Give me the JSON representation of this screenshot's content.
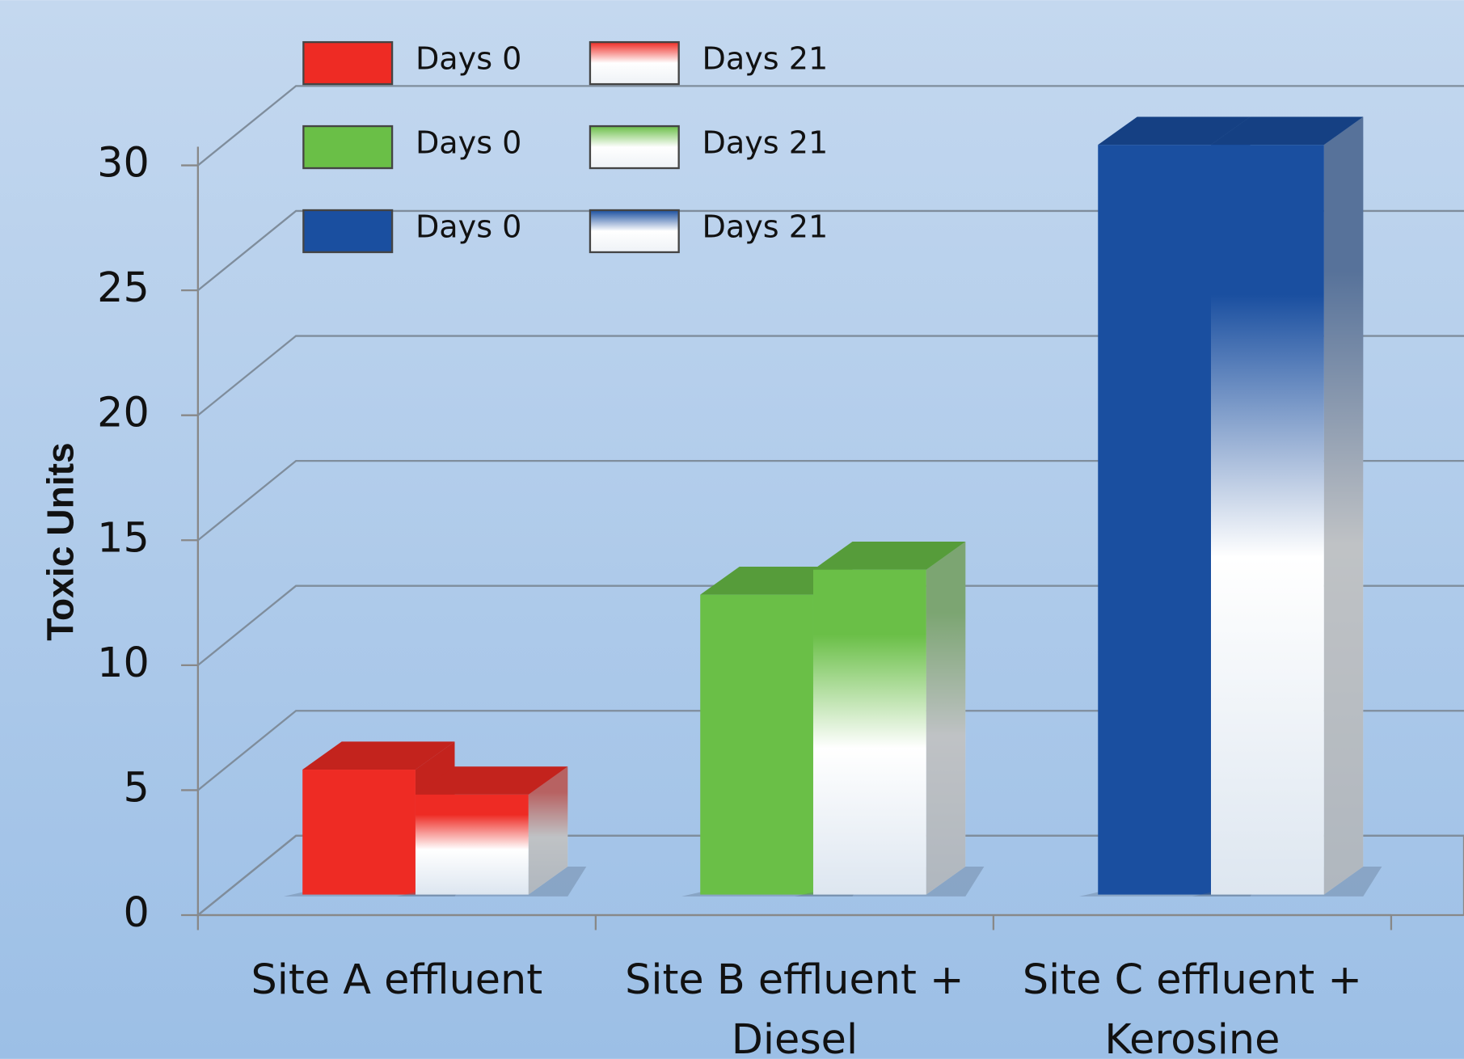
{
  "chart_data": {
    "type": "bar3d",
    "y_label": "Toxic Units",
    "categories": [
      "Site A effluent",
      "Site B effluent + Diesel",
      "Site C effluent + Kerosine"
    ],
    "series": [
      {
        "name": "Days 0",
        "color": "#ee2b24",
        "style": "solid",
        "values": [
          5,
          null,
          null
        ]
      },
      {
        "name": "Days 21",
        "color": "#ee2b24",
        "style": "fade",
        "values": [
          4,
          null,
          null
        ]
      },
      {
        "name": "Days 0",
        "color": "#6abf47",
        "style": "solid",
        "values": [
          null,
          12,
          null
        ]
      },
      {
        "name": "Days 21",
        "color": "#6abf47",
        "style": "fade",
        "values": [
          null,
          13,
          null
        ]
      },
      {
        "name": "Days 0",
        "color": "#1a4fa0",
        "style": "solid",
        "values": [
          null,
          null,
          30
        ]
      },
      {
        "name": "Days 21",
        "color": "#1a4fa0",
        "style": "fade",
        "values": [
          null,
          null,
          30
        ]
      }
    ],
    "ylim": [
      0,
      30
    ],
    "yticks": [
      0,
      5,
      10,
      15,
      20,
      25,
      30
    ],
    "grid": true
  }
}
